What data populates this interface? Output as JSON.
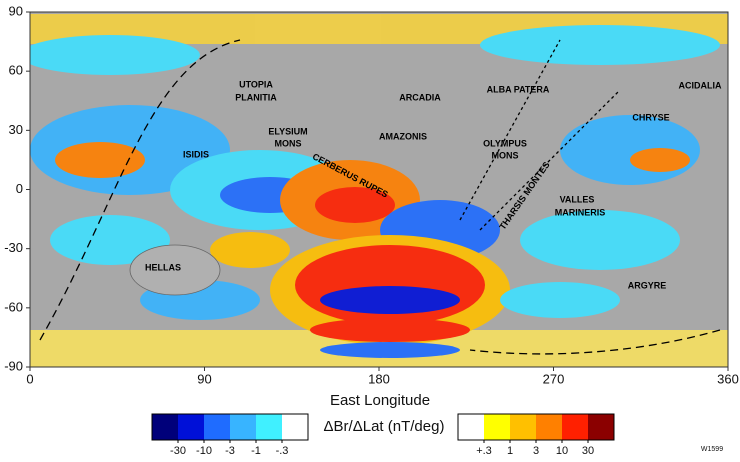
{
  "chart_data": {
    "type": "map",
    "xlabel": "East Longitude",
    "xlim": [
      0,
      360
    ],
    "xticks": [
      0,
      90,
      180,
      270,
      360
    ],
    "ylim": [
      -90,
      90
    ],
    "yticks": [
      90,
      60,
      30,
      0,
      -30,
      -60,
      -90
    ],
    "places": [
      "UTOPIA",
      "PLANITIA",
      "ARCADIA",
      "ALBA PATERA",
      "ACIDALIA",
      "ELYSIUM",
      "MONS",
      "AMAZONIS",
      "OLYMPUS",
      "MONS",
      "CHRYSE",
      "ISIDIS",
      "CERBERUS RUPES",
      "THARSIS MONTES",
      "VALLES",
      "MARINERIS",
      "HELLAS",
      "ARGYRE"
    ],
    "colorbar": {
      "label": "ΔBr/ΔLat (nT/deg)",
      "negative": {
        "colors": [
          "#00007a",
          "#0010d8",
          "#1f6cff",
          "#38b4ff",
          "#40f0ff",
          "#ffffff"
        ],
        "ticks": [
          -30,
          -10,
          -3,
          -1,
          {
            "value": -0.3,
            "label": "-.3"
          }
        ]
      },
      "positive": {
        "colors": [
          "#ffffff",
          "#ffff00",
          "#ffc000",
          "#ff8000",
          "#ff2000",
          "#8b0000"
        ],
        "ticks": [
          {
            "value": 0.3,
            "label": "+.3"
          },
          1,
          3,
          10,
          30
        ]
      }
    },
    "code": "W1599"
  }
}
